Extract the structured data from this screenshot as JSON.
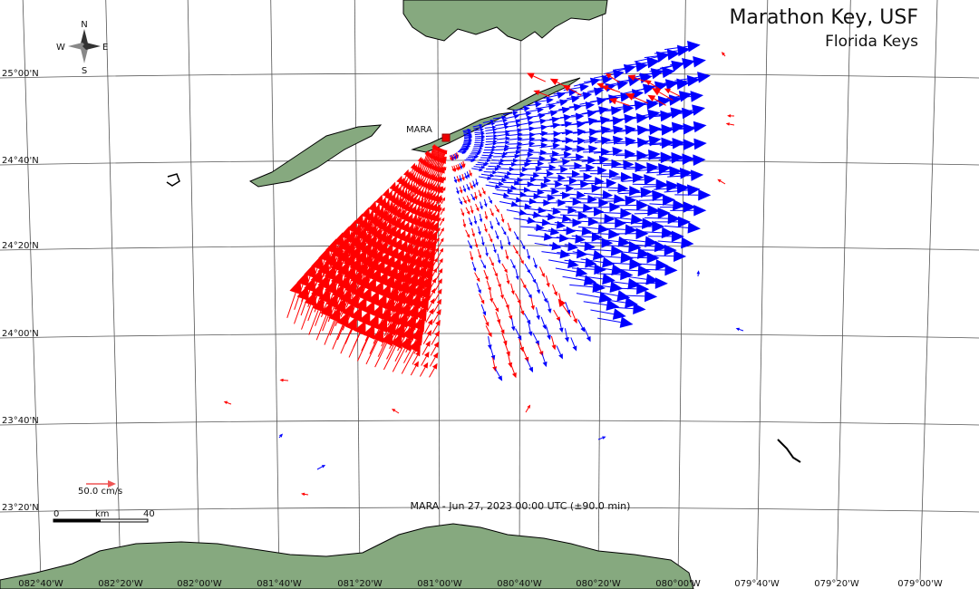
{
  "header": {
    "title": "Marathon Key, USF",
    "subtitle": "Florida Keys"
  },
  "site_label": "MARA",
  "caption": "MARA - Jun 27, 2023 00:00 UTC (±90.0 min)",
  "compass": {
    "n": "N",
    "s": "S",
    "e": "E",
    "w": "W"
  },
  "scale": {
    "vector": "50.0 cm/s",
    "start": "0",
    "unit": "km",
    "end": "40"
  },
  "lat_labels": [
    "25°00'N",
    "24°40'N",
    "24°20'N",
    "24°00'N",
    "23°40'N",
    "23°20'N"
  ],
  "lon_labels": [
    "082°40'W",
    "082°20'W",
    "082°00'W",
    "081°40'W",
    "081°20'W",
    "081°00'W",
    "080°40'W",
    "080°20'W",
    "080°00'W",
    "079°40'W",
    "079°20'W",
    "079°00'W"
  ]
}
